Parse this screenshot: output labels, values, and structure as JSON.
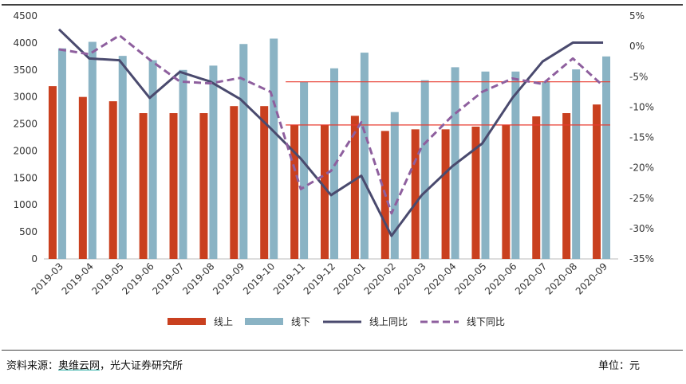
{
  "chart_data": {
    "type": "bar",
    "categories": [
      "2019-03",
      "2019-04",
      "2019-05",
      "2019-06",
      "2019-07",
      "2019-08",
      "2019-09",
      "2019-10",
      "2019-11",
      "2019-12",
      "2020-01",
      "2020-02",
      "2020-03",
      "2020-04",
      "2020-05",
      "2020-06",
      "2020-07",
      "2020-08",
      "2020-09"
    ],
    "series": [
      {
        "name": "线上",
        "kind": "bar",
        "axis": "left",
        "color": "#c9401f",
        "values": [
          3200,
          3000,
          2920,
          2700,
          2700,
          2700,
          2830,
          2830,
          2480,
          2480,
          2650,
          2370,
          2400,
          2400,
          2450,
          2480,
          2640,
          2700,
          2860
        ]
      },
      {
        "name": "线下",
        "kind": "bar",
        "axis": "left",
        "color": "#8ab3c4",
        "values": [
          3900,
          4020,
          3760,
          3680,
          3500,
          3580,
          3980,
          4080,
          3280,
          3530,
          3820,
          2720,
          3310,
          3550,
          3470,
          3470,
          3290,
          3510,
          3750
        ]
      },
      {
        "name": "线上同比",
        "kind": "line",
        "axis": "right",
        "color": "#4a4a6e",
        "values": [
          2.8,
          -2,
          -2.3,
          -8.5,
          -4.2,
          -5.8,
          -8.7,
          -13.5,
          -18.5,
          -24.5,
          -21.3,
          -31.2,
          -24.5,
          -19.8,
          -16,
          -8.5,
          -2.5,
          0.6,
          0.6
        ]
      },
      {
        "name": "线下同比",
        "kind": "dashed-line",
        "axis": "right",
        "color": "#8e5f9e",
        "values": [
          -0.5,
          -1.3,
          1.8,
          -2.2,
          -5.8,
          -6.1,
          -5.2,
          -7.5,
          -23.5,
          -20.5,
          -12.5,
          -27.5,
          -16.5,
          -11.5,
          -7.5,
          -5.3,
          -6.2,
          -2,
          -6.5
        ]
      }
    ],
    "y_left": {
      "min": 0,
      "max": 4500,
      "step": 500,
      "ticks": [
        "0",
        "500",
        "1000",
        "1500",
        "2000",
        "2500",
        "3000",
        "3500",
        "4000",
        "4500"
      ]
    },
    "y_right": {
      "min": -35,
      "max": 5,
      "step": 5,
      "ticks": [
        "-35%",
        "-30%",
        "-25%",
        "-20%",
        "-15%",
        "-10%",
        "-5%",
        "0%",
        "5%"
      ]
    },
    "reference_lines": [
      {
        "axis": "left",
        "value": 3280,
        "from": "2019-11",
        "to": "2020-09",
        "color": "#e83a2e"
      },
      {
        "axis": "left",
        "value": 2480,
        "from": "2019-11",
        "to": "2020-09",
        "color": "#e83a2e"
      }
    ],
    "grid": false,
    "legend_placement": "bottom"
  },
  "footer": {
    "source_prefix": "资料来源：",
    "source_highlight": "奥维云网",
    "source_suffix": "，光大证券研究所",
    "unit": "单位：元"
  }
}
